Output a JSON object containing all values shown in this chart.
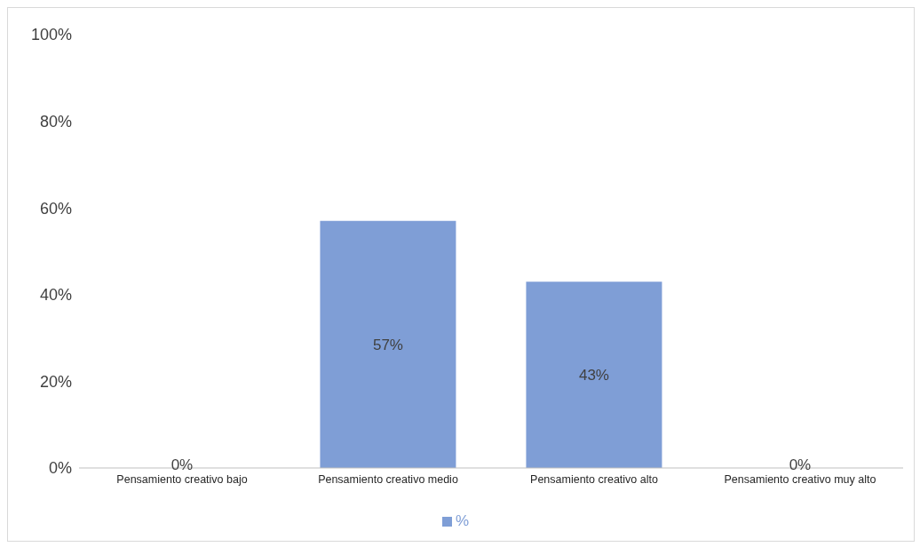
{
  "chart_data": {
    "type": "bar",
    "categories": [
      "Pensamiento creativo bajo",
      "Pensamiento creativo medio",
      "Pensamiento creativo alto",
      "Pensamiento creativo muy  alto"
    ],
    "series": [
      {
        "name": "%",
        "color": "#7f9ed6",
        "values": [
          0,
          57,
          43,
          0
        ],
        "value_labels": [
          "0%",
          "57%",
          "43%",
          "0%"
        ]
      }
    ],
    "ylim": [
      0,
      100
    ],
    "yticks": [
      {
        "value": 0,
        "label": "0%"
      },
      {
        "value": 20,
        "label": "20%"
      },
      {
        "value": 40,
        "label": "40%"
      },
      {
        "value": 60,
        "label": "60%"
      },
      {
        "value": 80,
        "label": "80%"
      },
      {
        "value": 100,
        "label": "100%"
      }
    ],
    "grid": false,
    "legend": "bottom"
  }
}
